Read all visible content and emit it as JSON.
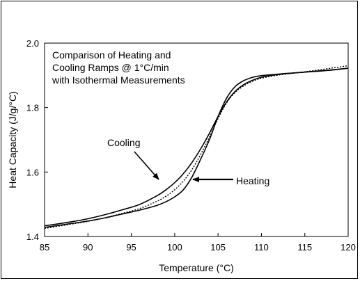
{
  "chart_data": {
    "type": "line",
    "title_lines": [
      "Comparison of Heating and",
      "Cooling Ramps @ 1°C/min",
      "with Isothermal Measurements"
    ],
    "xlabel": "Temperature (°C)",
    "ylabel": "Heat Capacity (J/g/°C)",
    "xlim": [
      85,
      120
    ],
    "ylim": [
      1.4,
      2.0
    ],
    "xticks": [
      "85",
      "90",
      "95",
      "100",
      "105",
      "110",
      "115",
      "120"
    ],
    "yticks": [
      "1.4",
      "1.6",
      "1.8",
      "2.0"
    ],
    "grid": false,
    "legend": "none",
    "series": [
      {
        "name": "Cooling",
        "style": "solid",
        "x": [
          85,
          88,
          90,
          92,
          94,
          96,
          98,
          99,
          100,
          101,
          102,
          103,
          104,
          105,
          106,
          107,
          108,
          109,
          110,
          112,
          115,
          118,
          120
        ],
        "y": [
          1.433,
          1.445,
          1.455,
          1.468,
          1.483,
          1.5,
          1.527,
          1.545,
          1.567,
          1.595,
          1.63,
          1.672,
          1.72,
          1.772,
          1.818,
          1.851,
          1.872,
          1.885,
          1.894,
          1.903,
          1.91,
          1.917,
          1.922
        ]
      },
      {
        "name": "Heating",
        "style": "solid",
        "x": [
          85,
          88,
          90,
          92,
          94,
          96,
          98,
          99,
          100,
          101,
          102,
          103,
          104,
          105,
          106,
          107,
          108,
          109,
          110,
          112,
          115,
          118,
          120
        ],
        "y": [
          1.428,
          1.44,
          1.448,
          1.458,
          1.47,
          1.482,
          1.497,
          1.508,
          1.523,
          1.545,
          1.585,
          1.64,
          1.7,
          1.772,
          1.83,
          1.866,
          1.884,
          1.894,
          1.899,
          1.904,
          1.91,
          1.916,
          1.922
        ]
      },
      {
        "name": "Isothermal",
        "style": "dotted",
        "x": [
          85,
          88,
          90,
          92,
          94,
          96,
          98,
          99,
          100,
          101,
          102,
          103,
          104,
          105,
          106,
          107,
          108,
          109,
          110,
          112,
          115,
          118,
          120
        ],
        "y": [
          1.425,
          1.438,
          1.447,
          1.458,
          1.472,
          1.487,
          1.51,
          1.525,
          1.545,
          1.572,
          1.608,
          1.655,
          1.708,
          1.766,
          1.815,
          1.848,
          1.868,
          1.882,
          1.891,
          1.901,
          1.911,
          1.922,
          1.93
        ]
      }
    ],
    "annotations": [
      {
        "text": "Cooling",
        "points_to": "Cooling"
      },
      {
        "text": "Heating",
        "points_to": "Heating"
      }
    ]
  }
}
